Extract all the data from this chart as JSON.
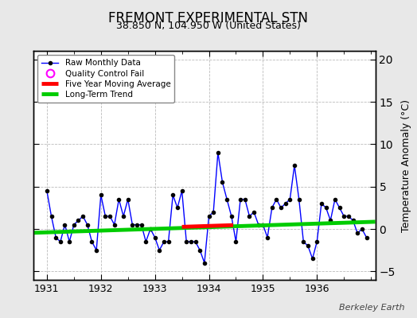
{
  "title": "FREMONT EXPERIMENTAL STN",
  "subtitle": "38.850 N, 104.950 W (United States)",
  "ylabel": "Temperature Anomaly (°C)",
  "watermark": "Berkeley Earth",
  "ylim": [
    -6,
    21
  ],
  "yticks": [
    -5,
    0,
    5,
    10,
    15,
    20
  ],
  "bg_color": "#e8e8e8",
  "plot_bg_color": "#ffffff",
  "raw_color": "#0000ff",
  "trend_color": "#00cc00",
  "mavg_color": "#ff0000",
  "qc_color": "#ff00ff",
  "xlim": [
    1930.75,
    1937.08
  ],
  "xticks": [
    1931,
    1932,
    1933,
    1934,
    1935,
    1936
  ],
  "raw_data": {
    "x": [
      1931.0,
      1931.083,
      1931.167,
      1931.25,
      1931.333,
      1931.417,
      1931.5,
      1931.583,
      1931.667,
      1931.75,
      1931.833,
      1931.917,
      1932.0,
      1932.083,
      1932.167,
      1932.25,
      1932.333,
      1932.417,
      1932.5,
      1932.583,
      1932.667,
      1932.75,
      1932.833,
      1932.917,
      1933.0,
      1933.083,
      1933.167,
      1933.25,
      1933.333,
      1933.417,
      1933.5,
      1933.583,
      1933.667,
      1933.75,
      1933.833,
      1933.917,
      1934.0,
      1934.083,
      1934.167,
      1934.25,
      1934.333,
      1934.417,
      1934.5,
      1934.583,
      1934.667,
      1934.75,
      1934.833,
      1934.917,
      1935.0,
      1935.083,
      1935.167,
      1935.25,
      1935.333,
      1935.417,
      1935.5,
      1935.583,
      1935.667,
      1935.75,
      1935.833,
      1935.917,
      1936.0,
      1936.083,
      1936.167,
      1936.25,
      1936.333,
      1936.417,
      1936.5,
      1936.583,
      1936.667,
      1936.75,
      1936.833,
      1936.917
    ],
    "y": [
      4.5,
      1.5,
      -1.0,
      -1.5,
      0.5,
      -1.5,
      0.5,
      1.0,
      1.5,
      0.5,
      -1.5,
      -2.5,
      4.0,
      1.5,
      1.5,
      0.5,
      3.5,
      1.5,
      3.5,
      0.5,
      0.5,
      0.5,
      -1.5,
      0.0,
      -1.0,
      -2.5,
      -1.5,
      -1.5,
      4.0,
      2.5,
      4.5,
      -1.5,
      -1.5,
      -1.5,
      -2.5,
      -4.0,
      1.5,
      2.0,
      9.0,
      5.5,
      3.5,
      1.5,
      -1.5,
      3.5,
      3.5,
      1.5,
      2.0,
      0.5,
      0.5,
      -1.0,
      2.5,
      3.5,
      2.5,
      3.0,
      3.5,
      7.5,
      3.5,
      -1.5,
      -2.0,
      -3.5,
      -1.5,
      3.0,
      2.5,
      1.0,
      3.5,
      2.5,
      1.5,
      1.5,
      1.0,
      -0.5,
      0.0,
      -1.0
    ]
  },
  "trend_line": {
    "x": [
      1930.75,
      1937.08
    ],
    "y": [
      -0.45,
      0.85
    ]
  },
  "mavg_line": {
    "x": [
      1933.5,
      1934.45
    ],
    "y": [
      0.25,
      0.45
    ]
  }
}
